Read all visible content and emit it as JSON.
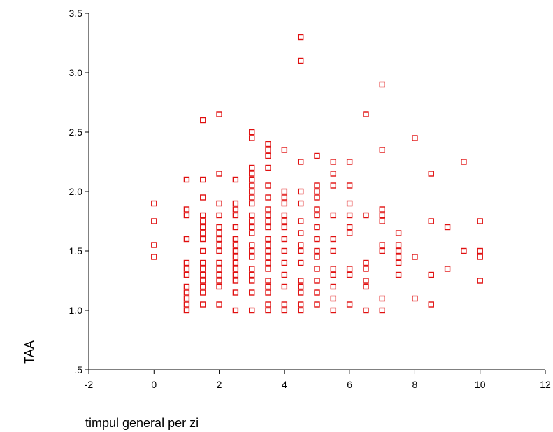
{
  "chart_data": {
    "type": "scatter",
    "title": "",
    "xlabel": "timpul general per zi",
    "ylabel": "TAA",
    "xlim": [
      -2,
      12
    ],
    "ylim": [
      0.5,
      3.5
    ],
    "x_ticks": [
      -2,
      0,
      2,
      4,
      6,
      8,
      10,
      12
    ],
    "y_ticks": [
      {
        "value": 0.5,
        "label": ".5"
      },
      {
        "value": 1.0,
        "label": "1.0"
      },
      {
        "value": 1.5,
        "label": "1.5"
      },
      {
        "value": 2.0,
        "label": "2.0"
      },
      {
        "value": 2.5,
        "label": "2.5"
      },
      {
        "value": 3.0,
        "label": "3.0"
      },
      {
        "value": 3.5,
        "label": "3.5"
      }
    ],
    "grid": false,
    "marker": "open-square",
    "color": "#e01010",
    "points": [
      [
        0,
        1.9
      ],
      [
        0,
        1.75
      ],
      [
        0,
        1.55
      ],
      [
        0,
        1.45
      ],
      [
        1,
        2.1
      ],
      [
        1,
        1.85
      ],
      [
        1,
        1.8
      ],
      [
        1,
        1.6
      ],
      [
        1,
        1.4
      ],
      [
        1,
        1.35
      ],
      [
        1,
        1.3
      ],
      [
        1,
        1.2
      ],
      [
        1,
        1.15
      ],
      [
        1,
        1.1
      ],
      [
        1,
        1.05
      ],
      [
        1,
        1.0
      ],
      [
        1.5,
        2.6
      ],
      [
        1.5,
        2.1
      ],
      [
        1.5,
        1.95
      ],
      [
        1.5,
        1.8
      ],
      [
        1.5,
        1.75
      ],
      [
        1.5,
        1.7
      ],
      [
        1.5,
        1.65
      ],
      [
        1.5,
        1.6
      ],
      [
        1.5,
        1.5
      ],
      [
        1.5,
        1.4
      ],
      [
        1.5,
        1.35
      ],
      [
        1.5,
        1.3
      ],
      [
        1.5,
        1.25
      ],
      [
        1.5,
        1.2
      ],
      [
        1.5,
        1.15
      ],
      [
        1.5,
        1.05
      ],
      [
        2,
        2.65
      ],
      [
        2,
        2.15
      ],
      [
        2,
        1.9
      ],
      [
        2,
        1.8
      ],
      [
        2,
        1.7
      ],
      [
        2,
        1.65
      ],
      [
        2,
        1.6
      ],
      [
        2,
        1.55
      ],
      [
        2,
        1.5
      ],
      [
        2,
        1.4
      ],
      [
        2,
        1.35
      ],
      [
        2,
        1.3
      ],
      [
        2,
        1.25
      ],
      [
        2,
        1.2
      ],
      [
        2,
        1.05
      ],
      [
        2.5,
        2.1
      ],
      [
        2.5,
        1.9
      ],
      [
        2.5,
        1.85
      ],
      [
        2.5,
        1.8
      ],
      [
        2.5,
        1.7
      ],
      [
        2.5,
        1.6
      ],
      [
        2.5,
        1.55
      ],
      [
        2.5,
        1.5
      ],
      [
        2.5,
        1.45
      ],
      [
        2.5,
        1.4
      ],
      [
        2.5,
        1.35
      ],
      [
        2.5,
        1.3
      ],
      [
        2.5,
        1.25
      ],
      [
        2.5,
        1.15
      ],
      [
        2.5,
        1.0
      ],
      [
        3,
        2.5
      ],
      [
        3,
        2.45
      ],
      [
        3,
        2.2
      ],
      [
        3,
        2.15
      ],
      [
        3,
        2.1
      ],
      [
        3,
        2.05
      ],
      [
        3,
        2.0
      ],
      [
        3,
        1.95
      ],
      [
        3,
        1.9
      ],
      [
        3,
        1.8
      ],
      [
        3,
        1.75
      ],
      [
        3,
        1.7
      ],
      [
        3,
        1.65
      ],
      [
        3,
        1.55
      ],
      [
        3,
        1.5
      ],
      [
        3,
        1.45
      ],
      [
        3,
        1.35
      ],
      [
        3,
        1.3
      ],
      [
        3,
        1.25
      ],
      [
        3,
        1.15
      ],
      [
        3,
        1.0
      ],
      [
        3.5,
        2.4
      ],
      [
        3.5,
        2.35
      ],
      [
        3.5,
        2.3
      ],
      [
        3.5,
        2.2
      ],
      [
        3.5,
        2.05
      ],
      [
        3.5,
        1.95
      ],
      [
        3.5,
        1.85
      ],
      [
        3.5,
        1.8
      ],
      [
        3.5,
        1.75
      ],
      [
        3.5,
        1.7
      ],
      [
        3.5,
        1.6
      ],
      [
        3.5,
        1.55
      ],
      [
        3.5,
        1.5
      ],
      [
        3.5,
        1.45
      ],
      [
        3.5,
        1.4
      ],
      [
        3.5,
        1.35
      ],
      [
        3.5,
        1.25
      ],
      [
        3.5,
        1.2
      ],
      [
        3.5,
        1.15
      ],
      [
        3.5,
        1.05
      ],
      [
        3.5,
        1.0
      ],
      [
        4,
        2.35
      ],
      [
        4,
        2.0
      ],
      [
        4,
        1.95
      ],
      [
        4,
        1.9
      ],
      [
        4,
        1.8
      ],
      [
        4,
        1.75
      ],
      [
        4,
        1.7
      ],
      [
        4,
        1.6
      ],
      [
        4,
        1.5
      ],
      [
        4,
        1.4
      ],
      [
        4,
        1.3
      ],
      [
        4,
        1.2
      ],
      [
        4,
        1.05
      ],
      [
        4,
        1.0
      ],
      [
        4.5,
        3.3
      ],
      [
        4.5,
        3.1
      ],
      [
        4.5,
        2.25
      ],
      [
        4.5,
        2.0
      ],
      [
        4.5,
        1.9
      ],
      [
        4.5,
        1.75
      ],
      [
        4.5,
        1.65
      ],
      [
        4.5,
        1.55
      ],
      [
        4.5,
        1.5
      ],
      [
        4.5,
        1.4
      ],
      [
        4.5,
        1.25
      ],
      [
        4.5,
        1.2
      ],
      [
        4.5,
        1.15
      ],
      [
        4.5,
        1.05
      ],
      [
        4.5,
        1.0
      ],
      [
        5,
        2.3
      ],
      [
        5,
        2.05
      ],
      [
        5,
        2.0
      ],
      [
        5,
        1.95
      ],
      [
        5,
        1.85
      ],
      [
        5,
        1.8
      ],
      [
        5,
        1.7
      ],
      [
        5,
        1.6
      ],
      [
        5,
        1.5
      ],
      [
        5,
        1.45
      ],
      [
        5,
        1.35
      ],
      [
        5,
        1.25
      ],
      [
        5,
        1.15
      ],
      [
        5,
        1.05
      ],
      [
        5.5,
        2.25
      ],
      [
        5.5,
        2.15
      ],
      [
        5.5,
        2.05
      ],
      [
        5.5,
        1.8
      ],
      [
        5.5,
        1.6
      ],
      [
        5.5,
        1.5
      ],
      [
        5.5,
        1.35
      ],
      [
        5.5,
        1.3
      ],
      [
        5.5,
        1.2
      ],
      [
        5.5,
        1.1
      ],
      [
        5.5,
        1.0
      ],
      [
        6,
        2.25
      ],
      [
        6,
        2.05
      ],
      [
        6,
        1.9
      ],
      [
        6,
        1.8
      ],
      [
        6,
        1.7
      ],
      [
        6,
        1.65
      ],
      [
        6,
        1.35
      ],
      [
        6,
        1.3
      ],
      [
        6,
        1.05
      ],
      [
        6.5,
        2.65
      ],
      [
        6.5,
        1.8
      ],
      [
        6.5,
        1.4
      ],
      [
        6.5,
        1.35
      ],
      [
        6.5,
        1.25
      ],
      [
        6.5,
        1.2
      ],
      [
        6.5,
        1.0
      ],
      [
        7,
        2.9
      ],
      [
        7,
        2.35
      ],
      [
        7,
        1.85
      ],
      [
        7,
        1.8
      ],
      [
        7,
        1.75
      ],
      [
        7,
        1.55
      ],
      [
        7,
        1.5
      ],
      [
        7,
        1.1
      ],
      [
        7,
        1.0
      ],
      [
        7.5,
        1.65
      ],
      [
        7.5,
        1.55
      ],
      [
        7.5,
        1.5
      ],
      [
        7.5,
        1.45
      ],
      [
        7.5,
        1.4
      ],
      [
        7.5,
        1.3
      ],
      [
        8,
        2.45
      ],
      [
        8,
        1.45
      ],
      [
        8,
        1.1
      ],
      [
        8.5,
        2.15
      ],
      [
        8.5,
        1.75
      ],
      [
        8.5,
        1.3
      ],
      [
        8.5,
        1.05
      ],
      [
        9,
        1.7
      ],
      [
        9,
        1.35
      ],
      [
        9.5,
        2.25
      ],
      [
        9.5,
        1.5
      ],
      [
        10,
        1.75
      ],
      [
        10,
        1.5
      ],
      [
        10,
        1.45
      ],
      [
        10,
        1.25
      ]
    ]
  }
}
